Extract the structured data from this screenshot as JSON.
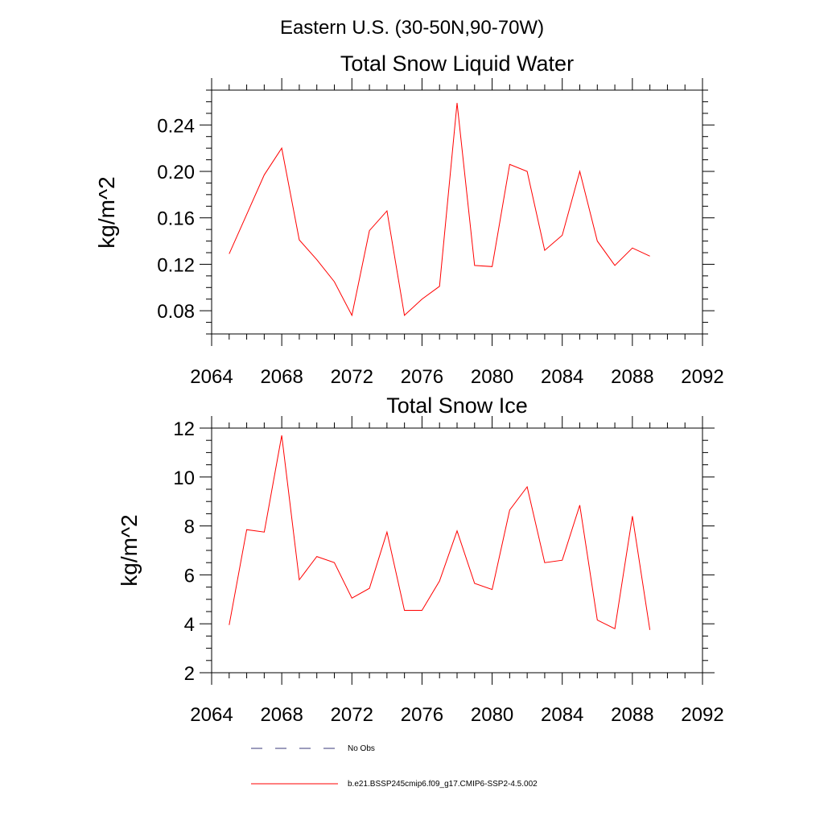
{
  "figure_title": "Eastern U.S. (30-50N,90-70W)",
  "chart_data": [
    {
      "type": "line",
      "title": "Total Snow Liquid Water",
      "xlabel": "",
      "ylabel": "kg/m^2",
      "xlim": [
        2064,
        2092
      ],
      "ylim": [
        0.06,
        0.27
      ],
      "xticks": [
        "2064",
        "2068",
        "2072",
        "2076",
        "2080",
        "2084",
        "2088",
        "2092"
      ],
      "yticks": [
        "0.08",
        "0.12",
        "0.16",
        "0.20",
        "0.24"
      ],
      "series": [
        {
          "name": "b.e21.BSSP245cmip6.f09_g17.CMIP6-SSP2-4.5.002",
          "color": "#ff0000",
          "x": [
            2065,
            2066,
            2067,
            2068,
            2069,
            2070,
            2071,
            2072,
            2073,
            2074,
            2075,
            2076,
            2077,
            2078,
            2079,
            2080,
            2081,
            2082,
            2083,
            2084,
            2085,
            2086,
            2087,
            2088,
            2089
          ],
          "y": [
            0.129,
            0.163,
            0.197,
            0.22,
            0.141,
            0.124,
            0.105,
            0.076,
            0.149,
            0.166,
            0.076,
            0.09,
            0.101,
            0.259,
            0.119,
            0.118,
            0.206,
            0.2,
            0.132,
            0.145,
            0.2,
            0.14,
            0.119,
            0.134,
            0.127
          ]
        }
      ]
    },
    {
      "type": "line",
      "title": "Total Snow Ice",
      "xlabel": "",
      "ylabel": "kg/m^2",
      "xlim": [
        2064,
        2092
      ],
      "ylim": [
        2,
        12
      ],
      "xticks": [
        "2064",
        "2068",
        "2072",
        "2076",
        "2080",
        "2084",
        "2088",
        "2092"
      ],
      "yticks": [
        "2",
        "4",
        "6",
        "8",
        "10",
        "12"
      ],
      "series": [
        {
          "name": "b.e21.BSSP245cmip6.f09_g17.CMIP6-SSP2-4.5.002",
          "color": "#ff0000",
          "x": [
            2065,
            2066,
            2067,
            2068,
            2069,
            2070,
            2071,
            2072,
            2073,
            2074,
            2075,
            2076,
            2077,
            2078,
            2079,
            2080,
            2081,
            2082,
            2083,
            2084,
            2085,
            2086,
            2087,
            2088,
            2089
          ],
          "y": [
            3.95,
            7.85,
            7.75,
            11.7,
            5.8,
            6.75,
            6.5,
            5.05,
            5.45,
            7.75,
            4.55,
            4.55,
            5.75,
            7.8,
            5.65,
            5.4,
            8.65,
            9.6,
            6.5,
            6.6,
            8.85,
            4.15,
            3.8,
            8.4,
            3.75
          ]
        }
      ]
    }
  ],
  "legend": {
    "placement": "bottom",
    "items": [
      {
        "label": "No Obs",
        "color": "#3a3a7a",
        "style": "dashed"
      },
      {
        "label": "b.e21.BSSP245cmip6.f09_g17.CMIP6-SSP2-4.5.002",
        "color": "#ff0000",
        "style": "solid"
      }
    ]
  }
}
